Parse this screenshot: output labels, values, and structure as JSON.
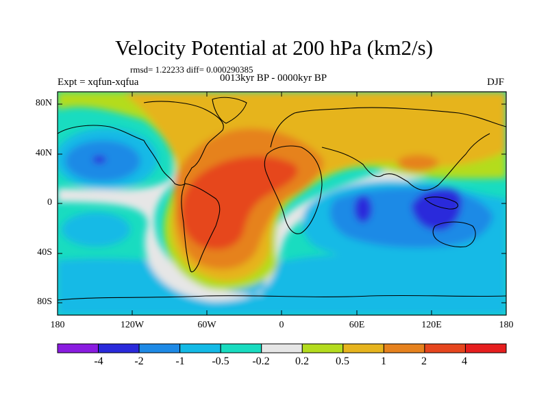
{
  "title": "Velocity Potential at 200 hPa (km2/s)",
  "stats": "rmsd= 1.22233 diff= 0.000290385",
  "experiment": "Expt = xqfun-xqfua",
  "period": "0013kyr BP - 0000kyr BP",
  "season": "DJF",
  "map": {
    "lat_ticks": [
      "80N",
      "40N",
      "0",
      "40S",
      "80S"
    ],
    "lon_ticks": [
      "180",
      "120W",
      "60W",
      "0",
      "60E",
      "120E",
      "180"
    ]
  },
  "colorbar": {
    "colors": [
      "#8A1CE0",
      "#2A2ADB",
      "#1E8AE6",
      "#14BAE6",
      "#19DCC0",
      "#E6E6E6",
      "#B4DC1E",
      "#E6B41E",
      "#E6821E",
      "#E6461E",
      "#E61E1E"
    ],
    "labels": [
      "-4",
      "-2",
      "-1",
      "-0.5",
      "-0.2",
      "0.2",
      "0.5",
      "1",
      "2",
      "4"
    ]
  }
}
